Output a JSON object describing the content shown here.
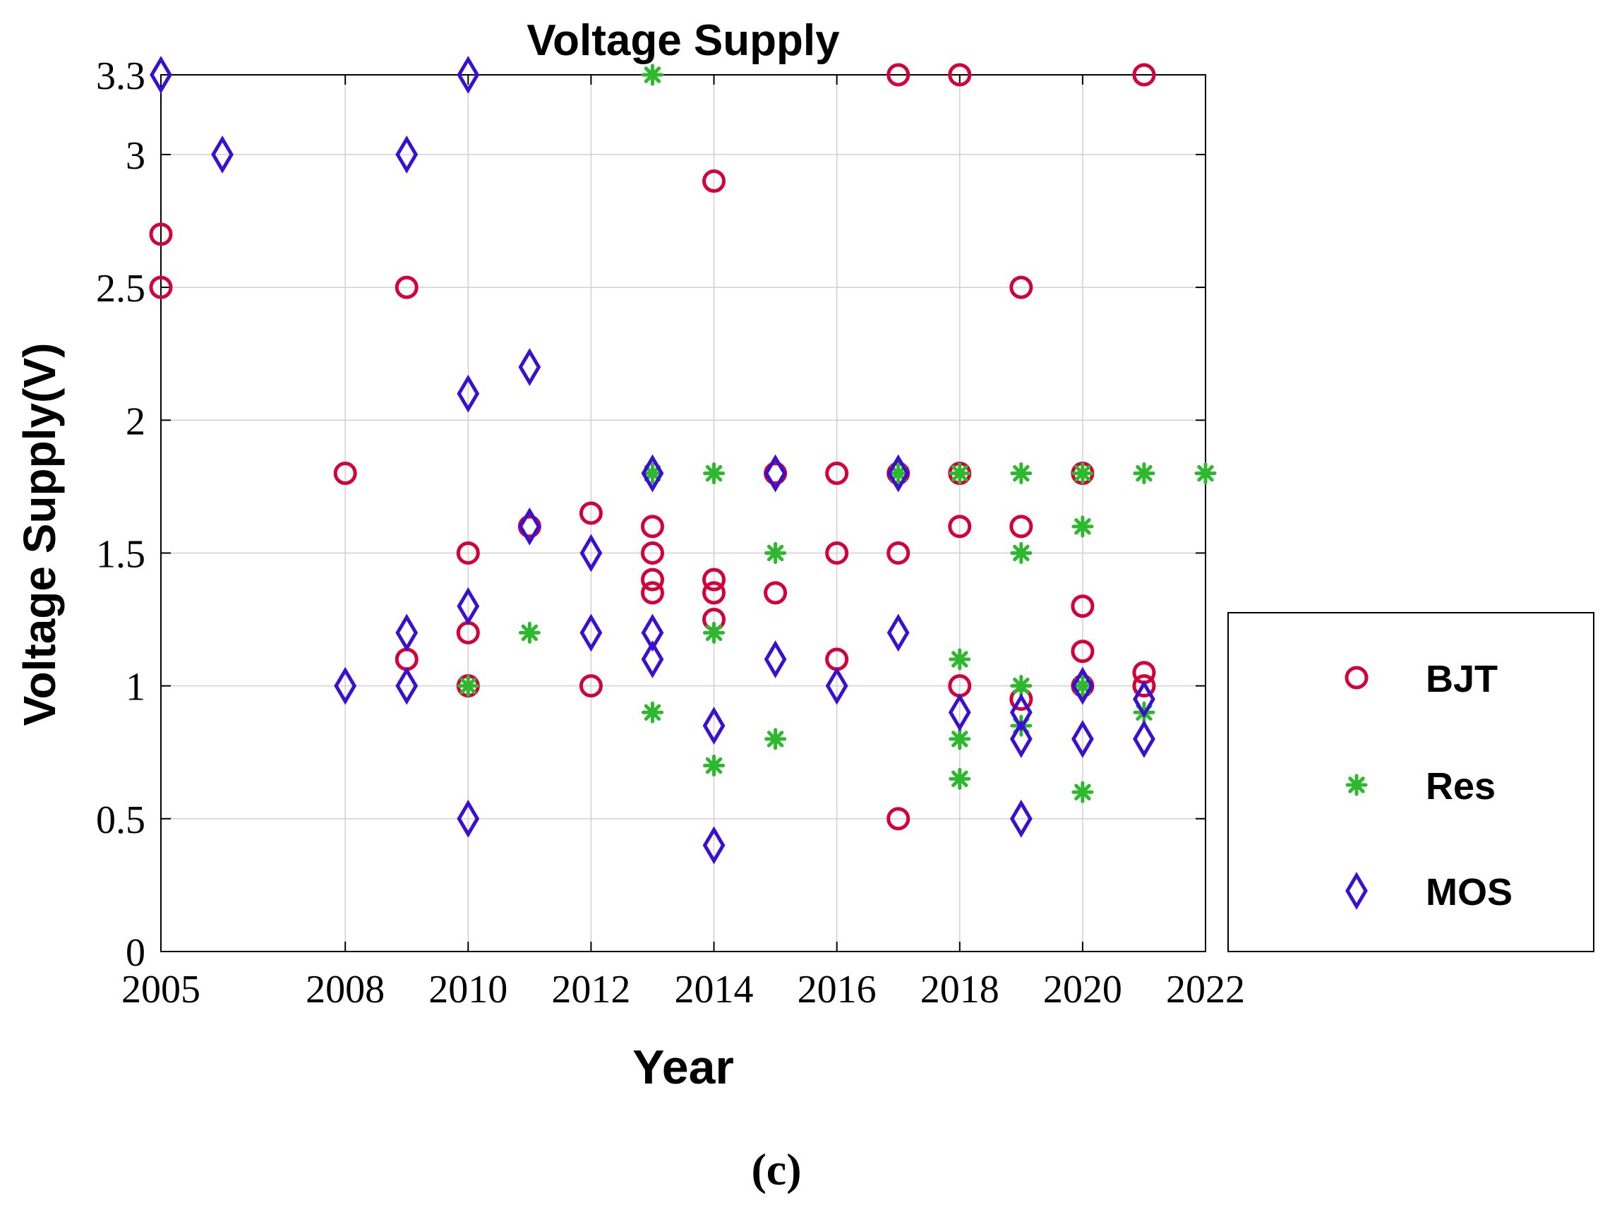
{
  "chart_data": {
    "type": "scatter",
    "title": "Voltage Supply",
    "xlabel": "Year",
    "ylabel": "Voltage Supply(V)",
    "caption": "(c)",
    "xlim": [
      2005,
      2022
    ],
    "ylim": [
      0,
      3.3
    ],
    "xticks": [
      2005,
      2008,
      2010,
      2012,
      2014,
      2016,
      2018,
      2020,
      2022
    ],
    "xtick_labels": [
      "2005",
      "2008",
      "2010",
      "2012",
      "2014",
      "2016",
      "2018",
      "2020",
      "2022"
    ],
    "yticks": [
      0,
      0.5,
      1,
      1.5,
      2,
      2.5,
      3,
      3.3
    ],
    "ytick_labels": [
      "0",
      "0.5",
      "1",
      "1.5",
      "2",
      "2.5",
      "3",
      "3.3"
    ],
    "grid": true,
    "legend_position": "right",
    "series": [
      {
        "name": "BJT",
        "marker": "circle",
        "color": "#d4003a",
        "points": [
          [
            2005,
            2.7
          ],
          [
            2005,
            2.5
          ],
          [
            2008,
            1.8
          ],
          [
            2009,
            2.5
          ],
          [
            2009,
            1.1
          ],
          [
            2010,
            1.5
          ],
          [
            2010,
            1.2
          ],
          [
            2010,
            1.0
          ],
          [
            2011,
            1.6
          ],
          [
            2012,
            1.65
          ],
          [
            2012,
            1.0
          ],
          [
            2013,
            1.6
          ],
          [
            2013,
            1.5
          ],
          [
            2013,
            1.4
          ],
          [
            2013,
            1.35
          ],
          [
            2014,
            2.9
          ],
          [
            2014,
            1.4
          ],
          [
            2014,
            1.35
          ],
          [
            2014,
            1.25
          ],
          [
            2015,
            1.8
          ],
          [
            2015,
            1.35
          ],
          [
            2016,
            1.8
          ],
          [
            2016,
            1.5
          ],
          [
            2016,
            1.1
          ],
          [
            2017,
            3.3
          ],
          [
            2017,
            1.8
          ],
          [
            2017,
            1.5
          ],
          [
            2017,
            0.5
          ],
          [
            2018,
            3.3
          ],
          [
            2018,
            1.8
          ],
          [
            2018,
            1.6
          ],
          [
            2018,
            1.0
          ],
          [
            2019,
            2.5
          ],
          [
            2019,
            1.6
          ],
          [
            2019,
            0.95
          ],
          [
            2020,
            1.8
          ],
          [
            2020,
            1.3
          ],
          [
            2020,
            1.13
          ],
          [
            2020,
            1.0
          ],
          [
            2021,
            3.3
          ],
          [
            2021,
            1.05
          ],
          [
            2021,
            1.0
          ]
        ]
      },
      {
        "name": "Res",
        "marker": "star",
        "color": "#2db82d",
        "points": [
          [
            2010,
            1.0
          ],
          [
            2011,
            1.2
          ],
          [
            2013,
            3.3
          ],
          [
            2013,
            1.8
          ],
          [
            2013,
            0.9
          ],
          [
            2014,
            1.8
          ],
          [
            2014,
            1.2
          ],
          [
            2014,
            0.7
          ],
          [
            2015,
            1.5
          ],
          [
            2015,
            0.8
          ],
          [
            2017,
            1.8
          ],
          [
            2018,
            1.8
          ],
          [
            2018,
            1.1
          ],
          [
            2018,
            0.8
          ],
          [
            2018,
            0.65
          ],
          [
            2019,
            1.8
          ],
          [
            2019,
            1.5
          ],
          [
            2019,
            1.0
          ],
          [
            2019,
            0.85
          ],
          [
            2020,
            1.8
          ],
          [
            2020,
            1.6
          ],
          [
            2020,
            1.0
          ],
          [
            2020,
            0.6
          ],
          [
            2021,
            1.8
          ],
          [
            2021,
            0.9
          ],
          [
            2022,
            1.8
          ]
        ]
      },
      {
        "name": "MOS",
        "marker": "diamond",
        "color": "#3a10d0",
        "points": [
          [
            2005,
            3.3
          ],
          [
            2006,
            3.0
          ],
          [
            2008,
            1.0
          ],
          [
            2009,
            3.0
          ],
          [
            2009,
            1.2
          ],
          [
            2009,
            1.0
          ],
          [
            2010,
            3.3
          ],
          [
            2010,
            2.1
          ],
          [
            2010,
            1.3
          ],
          [
            2010,
            0.5
          ],
          [
            2011,
            2.2
          ],
          [
            2011,
            1.6
          ],
          [
            2012,
            1.5
          ],
          [
            2012,
            1.2
          ],
          [
            2013,
            1.8
          ],
          [
            2013,
            1.2
          ],
          [
            2013,
            1.1
          ],
          [
            2014,
            0.85
          ],
          [
            2014,
            0.4
          ],
          [
            2015,
            1.8
          ],
          [
            2015,
            1.1
          ],
          [
            2016,
            1.0
          ],
          [
            2017,
            1.8
          ],
          [
            2017,
            1.2
          ],
          [
            2018,
            0.9
          ],
          [
            2019,
            0.9
          ],
          [
            2019,
            0.8
          ],
          [
            2019,
            0.5
          ],
          [
            2020,
            1.0
          ],
          [
            2020,
            0.8
          ],
          [
            2021,
            0.95
          ],
          [
            2021,
            0.8
          ]
        ]
      }
    ]
  }
}
